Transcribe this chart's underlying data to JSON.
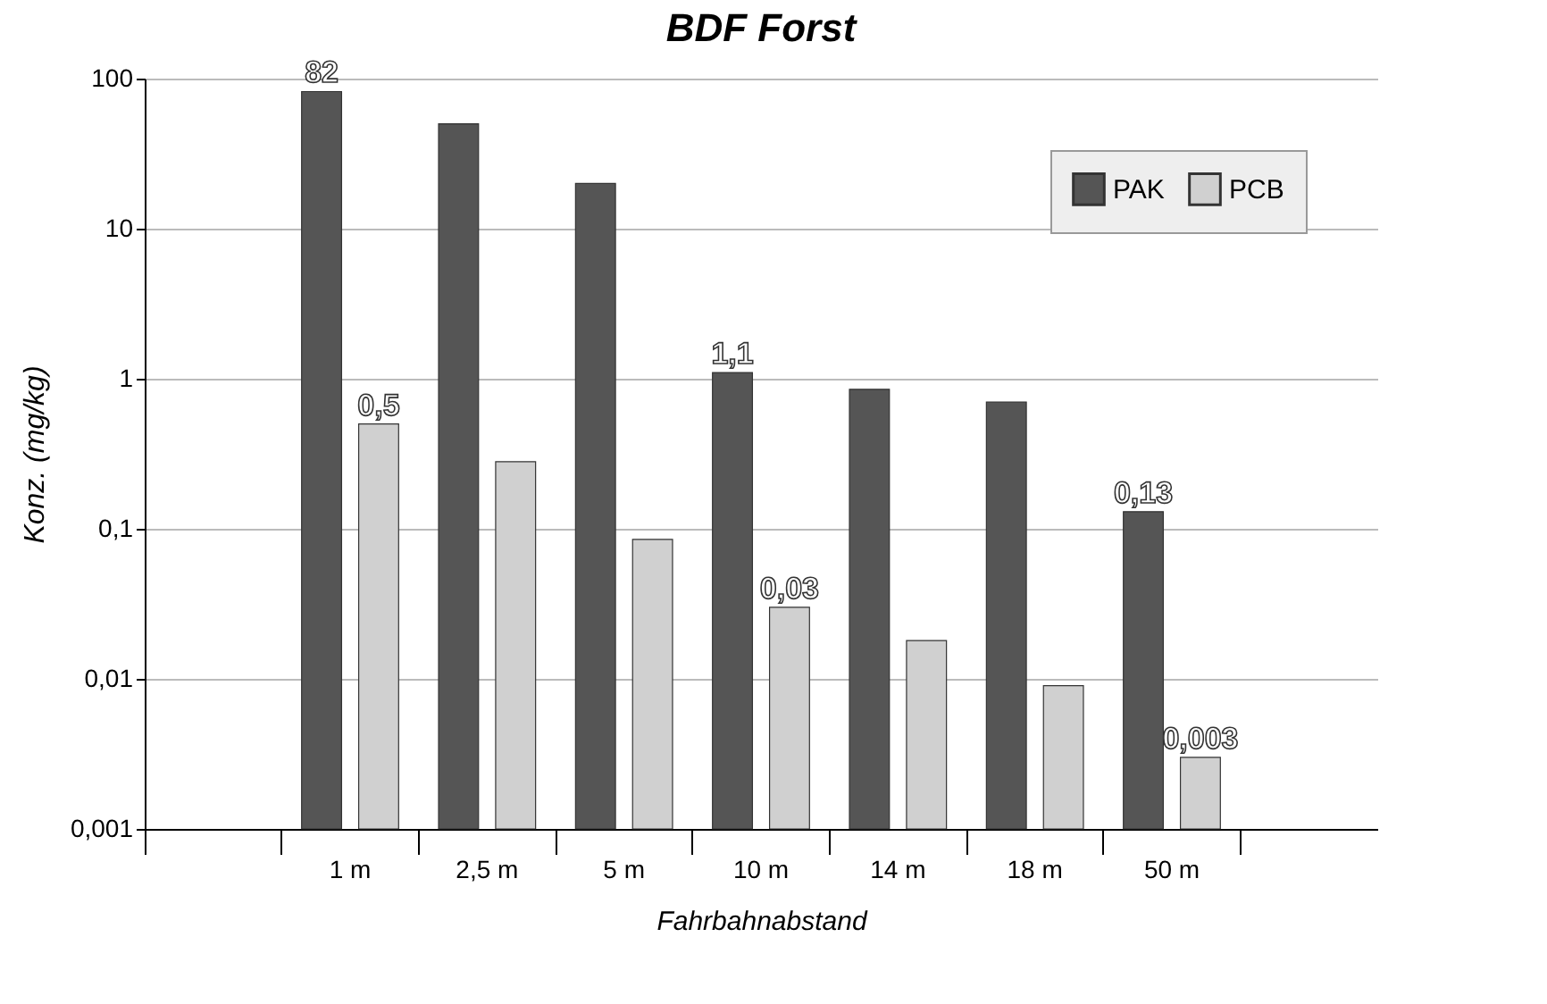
{
  "chart_data": {
    "type": "bar",
    "title": "BDF Forst",
    "xlabel": "Fahrbahnabstand",
    "ylabel": "Konz. (mg/kg)",
    "categories": [
      null,
      "1 m",
      "2,5 m",
      "5 m",
      "10 m",
      "14 m",
      "18 m",
      "50 m",
      null
    ],
    "series": [
      {
        "name": "PAK",
        "color": "#555555",
        "values": [
          null,
          82,
          50,
          20,
          1.1,
          0.85,
          0.7,
          0.13,
          null
        ],
        "value_labels": [
          null,
          "82",
          null,
          null,
          "1,1",
          null,
          null,
          "0,13",
          null
        ]
      },
      {
        "name": "PCB",
        "color": "#d0d0d0",
        "values": [
          null,
          0.5,
          0.28,
          0.085,
          0.03,
          0.018,
          0.009,
          0.003,
          null
        ],
        "value_labels": [
          null,
          "0,5",
          null,
          null,
          "0,03",
          null,
          null,
          "0,003",
          null
        ]
      }
    ],
    "log": "y",
    "ylim": [
      0.001,
      100
    ],
    "yticks": [
      {
        "value": 0.001,
        "label": "0,001"
      },
      {
        "value": 0.01,
        "label": "0,01"
      },
      {
        "value": 0.1,
        "label": "0,1"
      },
      1,
      10,
      100
    ],
    "grid": "y",
    "legend": "top right"
  }
}
